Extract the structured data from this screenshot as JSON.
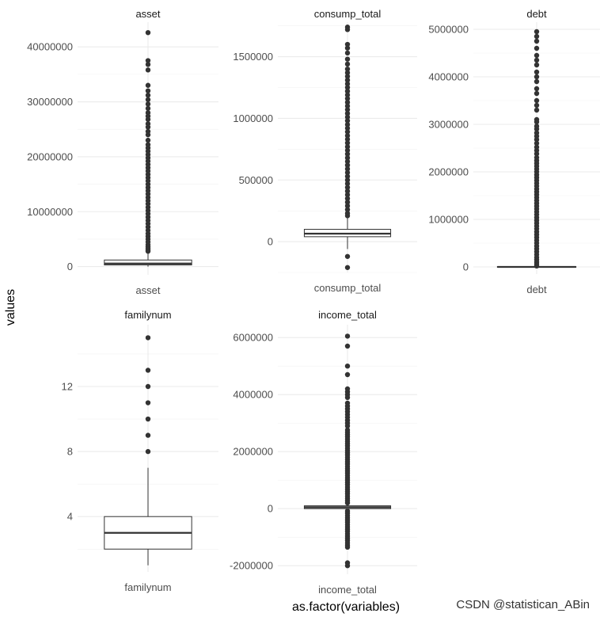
{
  "chart_data": {
    "type": "boxplot",
    "facet_layout": "wrap",
    "xlabel": "as.factor(variables)",
    "ylabel": "values",
    "grid": true,
    "panels": [
      {
        "strip": "asset",
        "category": "asset",
        "ylim": [
          -1500000,
          44500000
        ],
        "yticks": [
          0,
          10000000,
          20000000,
          30000000,
          40000000
        ],
        "ytick_labels": [
          "0",
          "10000000",
          "20000000",
          "30000000",
          "40000000"
        ],
        "box": {
          "min": 0,
          "q1": 300000,
          "median": 550000,
          "q3": 1200000,
          "max": 2700000
        },
        "outliers": [
          2800000,
          3000000,
          3300000,
          3600000,
          4000000,
          4500000,
          5000000,
          5500000,
          6000000,
          6600000,
          7200000,
          7800000,
          8400000,
          9000000,
          9600000,
          10200000,
          10800000,
          11400000,
          12000000,
          12600000,
          13200000,
          13800000,
          14400000,
          15000000,
          15600000,
          16200000,
          16800000,
          17400000,
          18000000,
          18600000,
          19200000,
          19800000,
          20400000,
          21000000,
          21600000,
          22200000,
          23000000,
          24000000,
          24600000,
          25400000,
          26000000,
          26800000,
          27400000,
          28000000,
          28800000,
          29600000,
          30400000,
          31200000,
          32000000,
          33000000,
          35800000,
          36800000,
          37500000,
          42600000
        ]
      },
      {
        "strip": "consump_total",
        "category": "consump_total",
        "ylim": [
          -250000,
          1780000
        ],
        "yticks": [
          0,
          500000,
          1000000,
          1500000
        ],
        "ytick_labels": [
          "0",
          "500000",
          "1000000",
          "1500000"
        ],
        "box": {
          "min": -60000,
          "q1": 40000,
          "median": 65000,
          "q3": 100000,
          "max": 200000
        },
        "outliers": [
          -120000,
          -210000,
          210000,
          230000,
          260000,
          290000,
          320000,
          350000,
          380000,
          410000,
          440000,
          470000,
          500000,
          530000,
          560000,
          590000,
          620000,
          650000,
          680000,
          710000,
          740000,
          770000,
          800000,
          830000,
          860000,
          890000,
          920000,
          950000,
          980000,
          1010000,
          1040000,
          1070000,
          1100000,
          1130000,
          1160000,
          1190000,
          1220000,
          1250000,
          1280000,
          1310000,
          1340000,
          1370000,
          1400000,
          1440000,
          1480000,
          1530000,
          1570000,
          1600000,
          1720000,
          1740000
        ]
      },
      {
        "strip": "debt",
        "category": "debt",
        "ylim": [
          -150000,
          5150000
        ],
        "yticks": [
          0,
          1000000,
          2000000,
          3000000,
          4000000,
          5000000
        ],
        "ytick_labels": [
          "0",
          "1000000",
          "2000000",
          "3000000",
          "4000000",
          "5000000"
        ],
        "box": {
          "min": 0,
          "q1": 0,
          "median": 0,
          "q3": 0,
          "max": 0
        },
        "outliers": [
          20000,
          60000,
          100000,
          150000,
          200000,
          260000,
          320000,
          380000,
          440000,
          500000,
          560000,
          620000,
          680000,
          740000,
          800000,
          860000,
          920000,
          980000,
          1040000,
          1100000,
          1160000,
          1220000,
          1280000,
          1340000,
          1400000,
          1460000,
          1520000,
          1580000,
          1640000,
          1700000,
          1760000,
          1820000,
          1880000,
          1940000,
          2000000,
          2060000,
          2120000,
          2180000,
          2240000,
          2300000,
          2380000,
          2450000,
          2520000,
          2600000,
          2680000,
          2750000,
          2820000,
          2900000,
          2960000,
          3050000,
          3100000,
          3300000,
          3400000,
          3500000,
          3650000,
          3750000,
          3900000,
          4000000,
          4100000,
          4250000,
          4350000,
          4450000,
          4600000,
          4750000,
          4850000,
          4950000
        ]
      },
      {
        "strip": "familynum",
        "category": "familynum",
        "ylim": [
          0.6,
          15.8
        ],
        "yticks": [
          4,
          8,
          12
        ],
        "ytick_labels": [
          "4",
          "8",
          "12"
        ],
        "box": {
          "min": 1,
          "q1": 2,
          "median": 3,
          "q3": 4,
          "max": 7
        },
        "outliers": [
          8,
          9,
          10,
          11,
          12,
          13,
          15
        ]
      },
      {
        "strip": "income_total",
        "category": "income_total",
        "ylim": [
          -2300000,
          6450000
        ],
        "yticks": [
          -2000000,
          0,
          2000000,
          4000000,
          6000000
        ],
        "ytick_labels": [
          "-2000000",
          "0",
          "2000000",
          "4000000",
          "6000000"
        ],
        "box": {
          "min": 0,
          "q1": 0,
          "median": 50000,
          "q3": 100000,
          "max": 150000
        },
        "outliers": [
          -80000,
          -160000,
          -240000,
          -320000,
          -400000,
          -480000,
          -560000,
          -640000,
          -720000,
          -800000,
          -880000,
          -960000,
          -1040000,
          -1120000,
          -1200000,
          -1280000,
          -1350000,
          -1900000,
          -2000000,
          200000,
          280000,
          360000,
          440000,
          520000,
          600000,
          680000,
          760000,
          840000,
          920000,
          1000000,
          1080000,
          1160000,
          1240000,
          1320000,
          1400000,
          1480000,
          1560000,
          1640000,
          1720000,
          1800000,
          1880000,
          1960000,
          2040000,
          2120000,
          2200000,
          2280000,
          2360000,
          2440000,
          2520000,
          2600000,
          2680000,
          2760000,
          2900000,
          3000000,
          3100000,
          3200000,
          3300000,
          3400000,
          3500000,
          3600000,
          3700000,
          3900000,
          4000000,
          4100000,
          4200000,
          4700000,
          5000000,
          5700000,
          6050000
        ]
      }
    ]
  },
  "watermark": "CSDN @statistican_ABin"
}
